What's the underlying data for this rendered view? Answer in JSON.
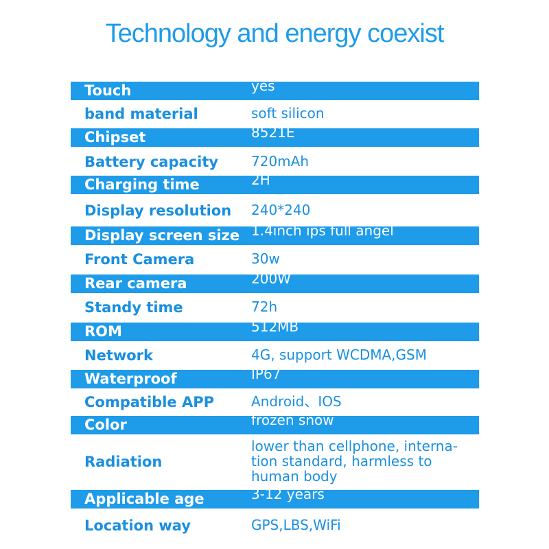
{
  "header": {
    "title": "Technology and energy coexist"
  },
  "table": {
    "rows": [
      {
        "label": "Touch",
        "value": [
          "yes"
        ]
      },
      {
        "label": "band material",
        "value": [
          "soft silicon"
        ]
      },
      {
        "label": "Chipset",
        "value": [
          "8521E"
        ]
      },
      {
        "label": "Battery capacity",
        "value": [
          "720mAh"
        ]
      },
      {
        "label": "Charging time",
        "value": [
          "2H"
        ]
      },
      {
        "label": "Display resolution",
        "value": [
          "240*240"
        ]
      },
      {
        "label": "Display screen size",
        "value": [
          "1.4inch ips full angel"
        ]
      },
      {
        "label": "Front Camera",
        "value": [
          "30w"
        ]
      },
      {
        "label": "Rear camera",
        "value": [
          "200W"
        ]
      },
      {
        "label": "Standy time",
        "value": [
          "72h"
        ]
      },
      {
        "label": "ROM",
        "value": [
          "512MB"
        ]
      },
      {
        "label": "Network",
        "value": [
          "4G, support WCDMA,GSM"
        ]
      },
      {
        "label": "Waterproof",
        "value": [
          "IP67"
        ]
      },
      {
        "label": "Compatible APP",
        "value": [
          "Android、IOS"
        ]
      },
      {
        "label": "Color",
        "value": [
          "frozen snow"
        ]
      },
      {
        "label": "Radiation",
        "value": [
          "lower than cellphone, interna-",
          "tion standard, harmless to",
          "human body"
        ]
      },
      {
        "label": "Applicable age",
        "value": [
          "3-12 years"
        ]
      },
      {
        "label": "Location way",
        "value": [
          "GPS,LBS,WiFi"
        ]
      }
    ]
  }
}
